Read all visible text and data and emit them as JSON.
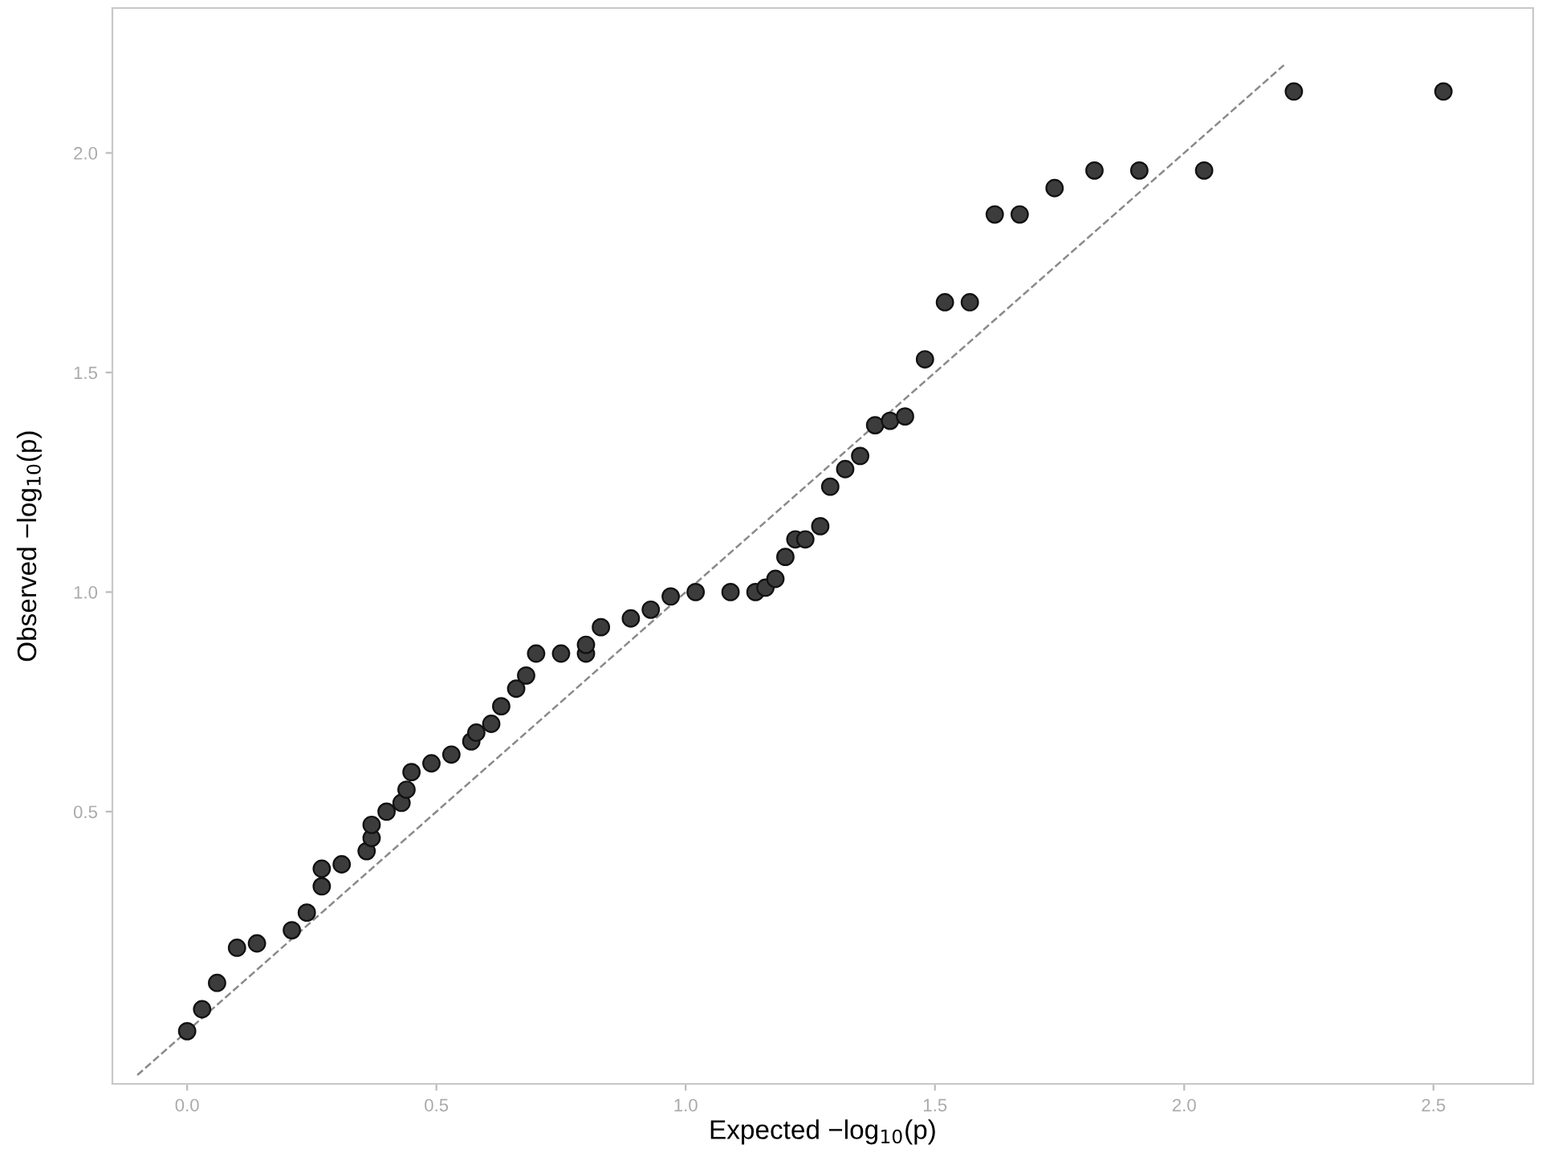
{
  "chart_data": {
    "type": "scatter",
    "xlabel": "Expected −log$_{10}$(p)",
    "ylabel": "Observed −log$_{10}$(p)",
    "xlim": [
      -0.15,
      2.7
    ],
    "ylim": [
      -0.12,
      2.33
    ],
    "xticks": [
      {
        "value": 0,
        "label": "0.0"
      },
      {
        "value": 0.5,
        "label": "0.5"
      },
      {
        "value": 1,
        "label": "1.0"
      },
      {
        "value": 1.5,
        "label": "1.5"
      },
      {
        "value": 2,
        "label": "2.0"
      },
      {
        "value": 2.5,
        "label": "2.5"
      }
    ],
    "yticks": [
      {
        "value": 0.5,
        "label": "0.5"
      },
      {
        "value": 1,
        "label": "1.0"
      },
      {
        "value": 1.5,
        "label": "1.5"
      },
      {
        "value": 2,
        "label": "2.0"
      }
    ],
    "grid": false,
    "legend": false,
    "marker": "circle",
    "series": [
      {
        "color": "#3c3c3c",
        "x": [
          0.0,
          0.03,
          0.06,
          0.1,
          0.14,
          0.21,
          0.24,
          0.27,
          0.27,
          0.31,
          0.36,
          0.37,
          0.37,
          0.4,
          0.43,
          0.44,
          0.45,
          0.49,
          0.53,
          0.57,
          0.58,
          0.61,
          0.63,
          0.66,
          0.68,
          0.7,
          0.75,
          0.8,
          0.8,
          0.83,
          0.89,
          0.93,
          0.97,
          1.02,
          1.09,
          1.14,
          1.16,
          1.18,
          1.2,
          1.22,
          1.24,
          1.27,
          1.29,
          1.32,
          1.35,
          1.38,
          1.41,
          1.44,
          1.48,
          1.52,
          1.57,
          1.62,
          1.67,
          1.74,
          1.82,
          1.91,
          2.04,
          2.22,
          2.52
        ],
        "values": [
          0.0,
          0.05,
          0.11,
          0.19,
          0.2,
          0.23,
          0.27,
          0.33,
          0.37,
          0.38,
          0.41,
          0.44,
          0.47,
          0.5,
          0.52,
          0.55,
          0.59,
          0.61,
          0.63,
          0.66,
          0.68,
          0.7,
          0.74,
          0.78,
          0.81,
          0.86,
          0.86,
          0.86,
          0.88,
          0.92,
          0.94,
          0.96,
          0.99,
          1.0,
          1.0,
          1.0,
          1.01,
          1.03,
          1.08,
          1.12,
          1.12,
          1.15,
          1.24,
          1.28,
          1.31,
          1.38,
          1.39,
          1.4,
          1.53,
          1.66,
          1.66,
          1.86,
          1.86,
          1.92,
          1.96,
          1.96,
          1.96,
          2.14,
          2.14
        ]
      },
      {
        "type": "line",
        "color": "#8a8a8a",
        "line_style": "dashed",
        "marker": "none",
        "x": [
          -0.1,
          2.2
        ],
        "values": [
          -0.1,
          2.2
        ]
      }
    ]
  }
}
